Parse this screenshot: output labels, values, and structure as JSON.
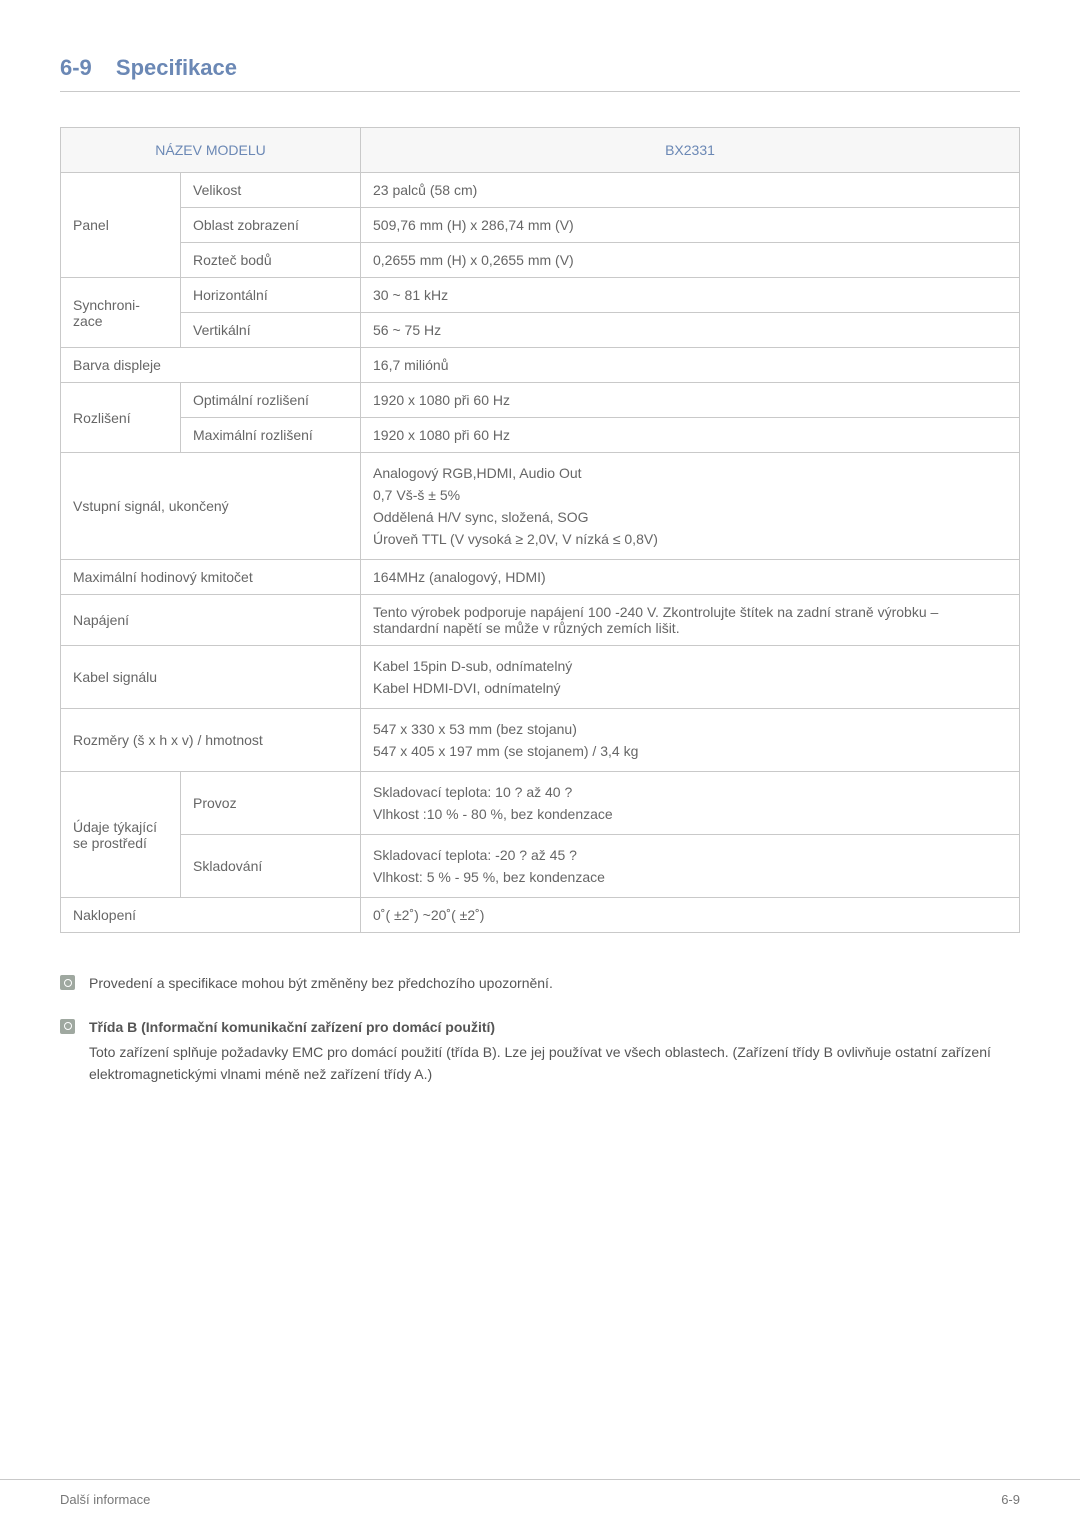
{
  "heading": {
    "number": "6-9",
    "title": "Specifikace",
    "color": "#6b88b5"
  },
  "table": {
    "header_left": "NÁZEV MODELU",
    "header_right": "BX2331",
    "header_bg": "#f7f7f7",
    "header_color": "#6b88b5",
    "border_color": "#c9c9c9",
    "rows": {
      "panel_label": "Panel",
      "panel_size_label": "Velikost",
      "panel_size_value": "23 palců (58 cm)",
      "panel_area_label": "Oblast zobrazení",
      "panel_area_value": "509,76 mm (H) x 286,74 mm (V)",
      "panel_pitch_label": "Rozteč bodů",
      "panel_pitch_value": "0,2655 mm (H) x 0,2655 mm (V)",
      "sync_label": "Synchroni-zace",
      "sync_h_label": "Horizontální",
      "sync_h_value": "30 ~ 81 kHz",
      "sync_v_label": "Vertikální",
      "sync_v_value": "56 ~ 75 Hz",
      "color_label": "Barva displeje",
      "color_value": "16,7 miliónů",
      "res_label": "Rozlišení",
      "res_opt_label": "Optimální rozlišení",
      "res_opt_value": "1920 x 1080 při 60 Hz",
      "res_max_label": "Maximální rozlišení",
      "res_max_value": "1920 x 1080 při 60 Hz",
      "input_label": "Vstupní signál, ukončený",
      "input_line1": "Analogový RGB,HDMI, Audio Out",
      "input_line2": "0,7 Vš-š ± 5%",
      "input_line3": "Oddělená H/V sync, složená, SOG",
      "input_line4": "Úroveň TTL (V vysoká ≥ 2,0V, V nízká ≤ 0,8V)",
      "clock_label": "Maximální hodinový kmitočet",
      "clock_value": "164MHz (analogový, HDMI)",
      "power_label": "Napájení",
      "power_value": "Tento výrobek podporuje napájení 100 -240 V. Zkontrolujte štítek na zadní straně výrobku – standardní napětí se může v různých zemích lišit.",
      "cable_label": "Kabel signálu",
      "cable_line1": "Kabel 15pin D-sub, odnímatelný",
      "cable_line2": "Kabel HDMI-DVI, odnímatelný",
      "dim_label": "Rozměry (š x h x v) / hmotnost",
      "dim_line1": "547 x 330 x 53 mm (bez stojanu)",
      "dim_line2": "547 x 405 x 197 mm (se stojanem) / 3,4 kg",
      "env_label": "Údaje týkající se prostředí",
      "env_op_label": "Provoz",
      "env_op_line1": "Skladovací teplota: 10 ? až 40 ?",
      "env_op_line2": "Vlhkost :10 % - 80 %, bez kondenzace",
      "env_st_label": "Skladování",
      "env_st_line1": "Skladovací teplota: -20 ? až 45 ?",
      "env_st_line2": "Vlhkost: 5 % - 95 %, bez kondenzace",
      "tilt_label": "Naklopení",
      "tilt_value": "0˚( ±2˚) ~20˚( ±2˚)"
    }
  },
  "notes": {
    "note1": "Provedení a specifikace mohou být změněny bez předchozího upozornění.",
    "note2_title": "Třída B (Informační komunikační zařízení pro domácí použití)",
    "note2_body": "Toto zařízení splňuje požadavky EMC pro domácí použití (třída B). Lze jej používat ve všech oblastech. (Zařízení třídy B ovlivňuje ostatní zařízení elektromagnetickými vlnami méně než zařízení třídy A.)"
  },
  "footer": {
    "left": "Další informace",
    "right": "6-9"
  }
}
